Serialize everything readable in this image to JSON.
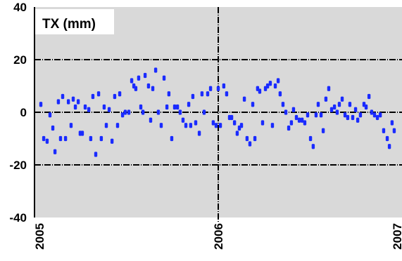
{
  "chart_data": {
    "type": "scatter",
    "title": "TX (mm)",
    "xlabel": "",
    "ylabel": "",
    "xlim": [
      2005.0,
      2007.0
    ],
    "ylim": [
      -40,
      40
    ],
    "yticks": [
      40,
      20,
      0,
      -20,
      -40
    ],
    "ytick_labels": [
      "40",
      "20",
      "0",
      "-20",
      "-40"
    ],
    "xticks": [
      2005,
      2006,
      2007
    ],
    "xtick_labels": [
      "2005",
      "2006",
      "2007"
    ],
    "grid": "dashed horizontal lines at 20, 0 and -20; vertical line at 2006",
    "colors": {
      "points": "#1a2bff",
      "plot_background": "#d9d9d9",
      "grid": "#000000",
      "title_box": "#ffffff"
    },
    "series": [
      {
        "x": [
          2005.008,
          2005.024,
          2005.043,
          2005.059,
          2005.075,
          2005.087,
          2005.106,
          2005.118,
          2005.13,
          2005.146,
          2005.162,
          2005.177,
          2005.189,
          2005.201,
          2005.217,
          2005.228,
          2005.24,
          2005.256,
          2005.276,
          2005.287,
          2005.299,
          2005.315,
          2005.331,
          2005.346,
          2005.362,
          2005.374,
          2005.39,
          2005.406,
          2005.421,
          2005.437,
          2005.449,
          2005.465,
          2005.48,
          2005.5,
          2005.516,
          2005.528,
          2005.539,
          2005.555,
          2005.567,
          2005.579,
          2005.591,
          2005.61,
          2005.622,
          2005.634,
          2005.65,
          2005.665,
          2005.681,
          2005.697,
          2005.713,
          2005.724,
          2005.74,
          2005.756,
          2005.772,
          2005.787,
          2005.803,
          2005.819,
          2005.835,
          2005.846,
          2005.858,
          2005.874,
          2005.894,
          2005.909,
          2005.921,
          2005.941,
          2005.957,
          2005.972,
          2005.988,
          2006.0,
          2006.012,
          2006.031,
          2006.047,
          2006.063,
          2006.075,
          2006.091,
          2006.106,
          2006.118,
          2006.13,
          2006.146,
          2006.161,
          2006.177,
          2006.193,
          2006.205,
          2006.22,
          2006.232,
          2006.248,
          2006.264,
          2006.276,
          2006.291,
          2006.303,
          2006.319,
          2006.335,
          2006.346,
          2006.362,
          2006.378,
          2006.394,
          2006.409,
          2006.421,
          2006.437,
          2006.453,
          2006.469,
          2006.484,
          2006.5,
          2006.516,
          2006.531,
          2006.547,
          2006.559,
          2006.575,
          2006.587,
          2006.602,
          2006.618,
          2006.634,
          2006.65,
          2006.665,
          2006.677,
          2006.693,
          2006.709,
          2006.724,
          2006.736,
          2006.752,
          2006.768,
          2006.78,
          2006.795,
          2006.815,
          2006.827,
          2006.843,
          2006.858,
          2006.874,
          2006.89,
          2006.906,
          2006.925,
          2006.945,
          2006.957,
          2006.972,
          2006.984
        ],
        "y": [
          3,
          -10,
          -11,
          -1,
          -6,
          -15,
          4,
          -10,
          6,
          -10,
          4,
          -5,
          5,
          2,
          4,
          -8,
          -8,
          2,
          1,
          -10,
          6,
          -16,
          7,
          -10,
          2,
          -5,
          1,
          -11,
          6,
          -5,
          7,
          -1,
          0,
          0,
          12,
          10,
          9,
          13,
          2,
          0,
          14,
          10,
          -3,
          9,
          16,
          0,
          -5,
          13,
          2,
          7,
          -10,
          2,
          2,
          0,
          -3,
          -5,
          3,
          -5,
          6,
          -4,
          -8,
          7,
          0,
          7,
          9,
          -4,
          -5,
          9,
          -5,
          10,
          7,
          -2,
          -2,
          -4,
          -8,
          -6,
          -5,
          5,
          -10,
          -12,
          3,
          -10,
          9,
          8,
          -4,
          9,
          10,
          11,
          -5,
          10,
          12,
          7,
          3,
          0,
          -6,
          -4,
          1,
          -2,
          -3,
          -3,
          -4,
          -1,
          -10,
          -13,
          -1,
          3,
          -1,
          -7,
          5,
          9,
          1,
          2,
          0,
          3,
          5,
          -1,
          -2,
          3,
          -2,
          1,
          -3,
          -1,
          3,
          2,
          6,
          0,
          -1,
          -2,
          -1,
          -7,
          -10,
          -13,
          -4,
          -7
        ]
      }
    ]
  }
}
